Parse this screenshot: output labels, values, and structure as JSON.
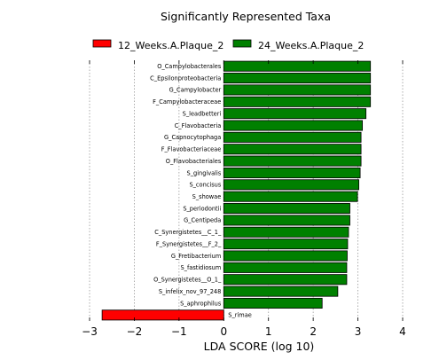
{
  "chart_data": {
    "type": "bar",
    "orientation": "horizontal",
    "title": "Significantly Represented Taxa",
    "xlabel": "LDA SCORE (log 10)",
    "ylabel": "",
    "xlim": [
      -3,
      4
    ],
    "xticks": [
      -3,
      -2,
      -1,
      0,
      1,
      2,
      3,
      4
    ],
    "grid": "vertical dashed",
    "legend_position": "top",
    "legend": [
      {
        "name": "12_Weeks.A.Plaque_2",
        "color": "#ff0000"
      },
      {
        "name": "24_Weeks.A.Plaque_2",
        "color": "#008000"
      }
    ],
    "categories": [
      "O_Campylobacterales",
      "C_Epsilonproteobacteria",
      "G_Campylobacter",
      "F_Campylobacteraceae",
      "S_leadbetteri",
      "C_Flavobacteria",
      "G_Capnocytophaga",
      "F_Flavobacteriaceae",
      "O_Flavobacteriales",
      "S_gingivalis",
      "S_concisus",
      "S_showae",
      "S_periodontii",
      "G_Centipeda",
      "C_Synergistetes__C_1_",
      "F_Synergistetes__F_2_",
      "G_Fretibacterium",
      "S_fastidiosum",
      "O_Synergistetes__O_1_",
      "S_infelix_nov_97_248",
      "S_aphrophilus",
      "S_rimae"
    ],
    "values": [
      3.28,
      3.28,
      3.28,
      3.28,
      3.18,
      3.1,
      3.07,
      3.07,
      3.07,
      3.05,
      3.02,
      2.99,
      2.82,
      2.82,
      2.79,
      2.77,
      2.76,
      2.75,
      2.75,
      2.55,
      2.2,
      -2.72
    ],
    "groups": [
      "24",
      "24",
      "24",
      "24",
      "24",
      "24",
      "24",
      "24",
      "24",
      "24",
      "24",
      "24",
      "24",
      "24",
      "24",
      "24",
      "24",
      "24",
      "24",
      "24",
      "24",
      "12"
    ]
  }
}
